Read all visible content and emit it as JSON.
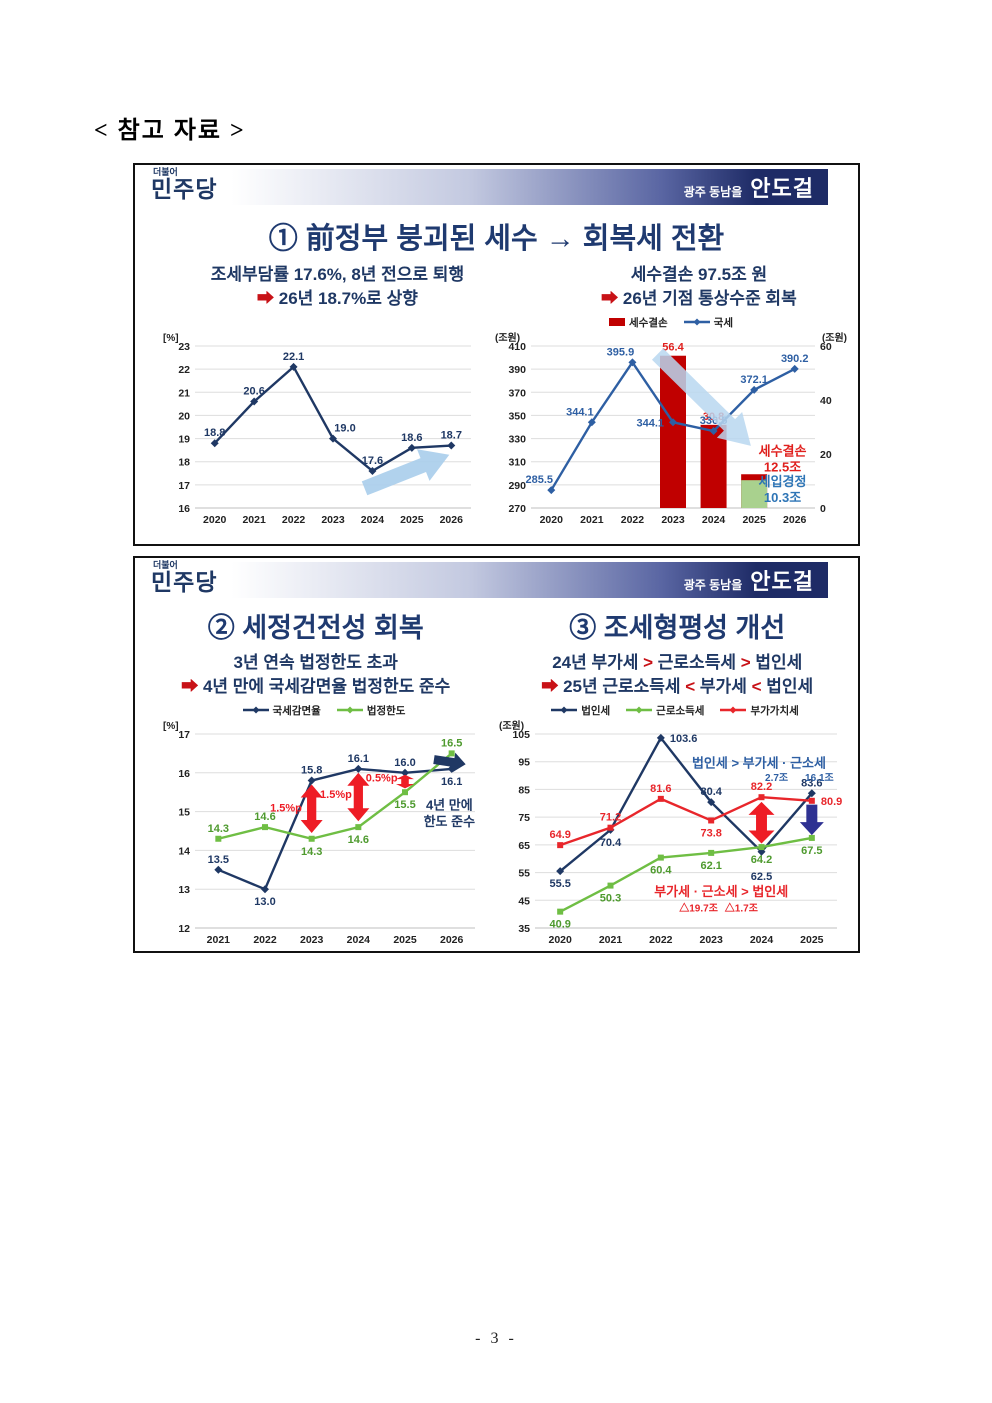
{
  "colors": {
    "navy": "#1F3864",
    "red": "#C81217",
    "banner_navy": "#1E2B66",
    "light_blue": "#AECCE9"
  },
  "page": {
    "heading": "< 참고 자료 >",
    "footer": "- 3 -"
  },
  "banner": {
    "logo_top": "더불어",
    "logo_main": "민주당",
    "badge_region": "광주 동남을",
    "badge_name": "안도걸"
  },
  "panel1": {
    "title": "① 前정부 붕괴된 세수 → 회복세 전환",
    "sub_left": {
      "line1": [
        {
          "t": "조세부담률 17.6%, 8년 전으로 퇴행",
          "c": "navy"
        }
      ],
      "line2": [
        {
          "t": "➡ ",
          "c": "red"
        },
        {
          "t": "26년 18.7%로 상향",
          "c": "navy"
        }
      ]
    },
    "sub_right": {
      "line1": [
        {
          "t": "세수결손 97.5조 원",
          "c": "navy"
        }
      ],
      "line2": [
        {
          "t": "➡ ",
          "c": "red"
        },
        {
          "t": "26년 기점 통상수준 회복",
          "c": "navy"
        }
      ]
    }
  },
  "panel2": {
    "title_left": "② 세정건전성 회복",
    "title_right": "③ 조세형평성 개선",
    "sub_left": {
      "line1": [
        {
          "t": "3년 연속 법정한도 초과",
          "c": "navy"
        }
      ],
      "line2": [
        {
          "t": "➡ ",
          "c": "red"
        },
        {
          "t": "4년 만에 국세감면율 법정한도 준수",
          "c": "navy"
        }
      ]
    },
    "sub_right": {
      "line1": [
        {
          "t": "24년 부가세 ",
          "c": "navy"
        },
        {
          "t": "> ",
          "c": "red"
        },
        {
          "t": "근로소득세 ",
          "c": "navy"
        },
        {
          "t": "> ",
          "c": "red"
        },
        {
          "t": "법인세",
          "c": "navy"
        }
      ],
      "line2": [
        {
          "t": "➡ ",
          "c": "red"
        },
        {
          "t": "25년 근로소득세 ",
          "c": "navy"
        },
        {
          "t": "< ",
          "c": "red"
        },
        {
          "t": "부가세 ",
          "c": "navy"
        },
        {
          "t": "< ",
          "c": "red"
        },
        {
          "t": "법인세",
          "c": "navy"
        }
      ]
    }
  },
  "chart_data": [
    {
      "id": "tax_burden",
      "type": "line",
      "unit": "[%]",
      "ylim": [
        16,
        23
      ],
      "ystep": 1,
      "categories": [
        "2020",
        "2021",
        "2022",
        "2023",
        "2024",
        "2025",
        "2026"
      ],
      "series": [
        {
          "name": "조세부담률",
          "color": "#1F3864",
          "marker": "diamond",
          "values": [
            18.8,
            20.6,
            22.1,
            19.0,
            17.6,
            18.6,
            18.7
          ],
          "labels": [
            "18.8",
            "20.6",
            "22.1",
            "19.0",
            "17.6",
            "18.6",
            "18.7"
          ],
          "label_pos": [
            "a",
            "a",
            "a",
            "ar",
            "a",
            "a",
            "a"
          ]
        }
      ],
      "annotations": [
        {
          "type": "fatarrow",
          "x1": 3.8,
          "y1": 16.85,
          "x2": 5.95,
          "y2": 18.3,
          "color": "#A9CDEB",
          "opacity": 0.9,
          "sw": 15,
          "hw": 34,
          "hl": 28
        }
      ]
    },
    {
      "id": "revenue_deficit",
      "type": "line+bar",
      "unit": "(조원)",
      "unit2": "(조원)",
      "ylim": [
        270,
        410
      ],
      "ystep": 20,
      "ylim2": [
        0,
        60
      ],
      "ystep2": 20,
      "categories": [
        "2020",
        "2021",
        "2022",
        "2023",
        "2024",
        "2025",
        "2026"
      ],
      "legend": [
        {
          "label": "세수결손",
          "swatch": "bar",
          "color": "#C00000"
        },
        {
          "label": "국세",
          "swatch": "line",
          "color": "#2E5FA3"
        }
      ],
      "legend_pos": "top-center",
      "bars": [
        {
          "name": "세수결손",
          "axis": "right",
          "color": "#C00000",
          "values": [
            null,
            null,
            null,
            56.4,
            30.8,
            12.5,
            null
          ],
          "labels": [
            "",
            "",
            "",
            "56.4",
            "30.8",
            "",
            ""
          ],
          "label_color": "#E0201E"
        },
        {
          "name": "세입경정",
          "axis": "right",
          "color": "#A9D18E",
          "values": [
            null,
            null,
            null,
            null,
            null,
            10.3,
            null
          ]
        }
      ],
      "series": [
        {
          "name": "국세",
          "color": "#2E5FA3",
          "marker": "diamond",
          "values": [
            285.5,
            344.1,
            395.9,
            344.1,
            336.5,
            372.1,
            390.2
          ],
          "labels": [
            "285.5",
            "344.1",
            "395.9",
            "344.1",
            "336.5",
            "372.1",
            "390.2"
          ],
          "label_pos": [
            "al",
            "al",
            "al",
            "l",
            "a",
            "a",
            "a"
          ]
        }
      ],
      "annotations": [
        {
          "type": "fatarrow",
          "x1": 2.62,
          "y1": 57,
          "x2": 4.92,
          "y2": 23,
          "axis": "right",
          "color": "#B9D7F0",
          "opacity": 0.85,
          "sw": 16,
          "hw": 36,
          "hl": 30
        },
        {
          "type": "text",
          "x": 5.7,
          "y": 19.5,
          "axis": "right",
          "text": "세수결손\n12.5조",
          "color": "#E0201E",
          "size": 13
        },
        {
          "type": "text",
          "x": 5.7,
          "y": 8.2,
          "axis": "right",
          "text": "세입경정\n10.3조",
          "color": "#2E75B6",
          "size": 13
        }
      ]
    },
    {
      "id": "reduction_ratio",
      "type": "line",
      "unit": "[%]",
      "ylim": [
        12,
        17
      ],
      "ystep": 1,
      "categories": [
        "2021",
        "2022",
        "2023",
        "2024",
        "2025",
        "2026"
      ],
      "legend": [
        {
          "label": "국세감면율",
          "swatch": "line",
          "color": "#1F3864"
        },
        {
          "label": "법정한도",
          "swatch": "line",
          "color": "#6FBE44"
        }
      ],
      "legend_pos": "top-center",
      "series": [
        {
          "name": "국세감면율",
          "color": "#1F3864",
          "marker": "diamond",
          "values": [
            13.5,
            13.0,
            15.8,
            16.1,
            16.0,
            16.1
          ],
          "labels": [
            "13.5",
            "13.0",
            "15.8",
            "16.1",
            "16.0",
            "16.1"
          ],
          "label_pos": [
            "a",
            "b",
            "a",
            "a",
            "a",
            "b"
          ]
        },
        {
          "name": "법정한도",
          "color": "#6FBE44",
          "marker": "square",
          "label_color": "#4E9A2E",
          "values": [
            14.3,
            14.6,
            14.3,
            14.6,
            15.5,
            16.5
          ],
          "labels": [
            "14.3",
            "14.6",
            "14.3",
            "14.6",
            "15.5",
            "16.5"
          ],
          "label_pos": [
            "a",
            "a",
            "b",
            "b",
            "b",
            "a"
          ]
        }
      ],
      "annotations": [
        {
          "type": "dblarrow",
          "x": 2,
          "y1": 14.45,
          "y2": 15.7,
          "w": 11,
          "color": "#EE1C25"
        },
        {
          "type": "dblarrow",
          "x": 3,
          "y1": 14.75,
          "y2": 16.0,
          "w": 11,
          "color": "#EE1C25"
        },
        {
          "type": "dblarrow",
          "x": 4,
          "y1": 15.6,
          "y2": 15.95,
          "w": 9,
          "color": "#EE1C25"
        },
        {
          "type": "text",
          "x": 1.45,
          "y": 15.0,
          "text": "1.5%p",
          "color": "#EE1C25",
          "size": 11
        },
        {
          "type": "text",
          "x": 2.52,
          "y": 15.35,
          "text": "1.5%p",
          "color": "#EE1C25",
          "size": 11
        },
        {
          "type": "text",
          "x": 3.5,
          "y": 15.78,
          "text": "0.5%p",
          "color": "#EE1C25",
          "size": 11
        },
        {
          "type": "fatarrow",
          "x1": 4.62,
          "y1": 16.34,
          "x2": 5.3,
          "y2": 16.22,
          "color": "#203864",
          "sw": 9,
          "hw": 20,
          "hl": 12
        },
        {
          "type": "text",
          "x": 4.95,
          "y": 15.05,
          "text": "4년 만에\n한도 준수",
          "color": "#1F3864",
          "size": 13
        }
      ]
    },
    {
      "id": "tax_equity",
      "type": "line",
      "unit": "(조원)",
      "ylim": [
        35,
        105
      ],
      "ystep": 10,
      "categories": [
        "2020",
        "2021",
        "2022",
        "2023",
        "2024",
        "2025"
      ],
      "legend": [
        {
          "label": "법인세",
          "swatch": "line",
          "color": "#1F3864"
        },
        {
          "label": "근로소득세",
          "swatch": "line",
          "color": "#6FBE44"
        },
        {
          "label": "부가가치세",
          "swatch": "line",
          "color": "#E8262B"
        }
      ],
      "legend_pos": "top-center",
      "series": [
        {
          "name": "법인세",
          "color": "#1F3864",
          "marker": "diamond",
          "values": [
            55.5,
            70.4,
            103.6,
            80.4,
            62.5,
            83.6
          ],
          "labels": [
            "55.5",
            "70.4",
            "103.6",
            "80.4",
            "62.5",
            "83.6"
          ],
          "label_pos": [
            "b",
            "b",
            "r",
            "a",
            "b2",
            "a"
          ]
        },
        {
          "name": "근로소득세",
          "color": "#6FBE44",
          "marker": "square",
          "label_color": "#4E9A2E",
          "values": [
            40.9,
            50.3,
            60.4,
            62.1,
            64.2,
            67.5
          ],
          "labels": [
            "40.9",
            "50.3",
            "60.4",
            "62.1",
            "64.2",
            "67.5"
          ],
          "label_pos": [
            "b",
            "b",
            "b",
            "b",
            "b",
            "b"
          ]
        },
        {
          "name": "부가가치세",
          "color": "#E8262B",
          "marker": "square",
          "values": [
            64.9,
            71.2,
            81.6,
            73.8,
            82.2,
            80.9
          ],
          "labels": [
            "64.9",
            "71.2",
            "81.6",
            "73.8",
            "82.2",
            "80.9"
          ],
          "label_pos": [
            "a",
            "a",
            "a",
            "b",
            "a",
            "r"
          ]
        }
      ],
      "annotations": [
        {
          "type": "text",
          "x": 3.95,
          "y": 93,
          "text": "법인세 > 부가세 · 근소세",
          "color": "#2E5FA3",
          "size": 13
        },
        {
          "type": "text",
          "x": 4.3,
          "y": 88,
          "text": "2.7조",
          "color": "#2E5FA3",
          "size": 10
        },
        {
          "type": "text",
          "x": 5.15,
          "y": 88,
          "text": "16.1조",
          "color": "#2E5FA3",
          "size": 10
        },
        {
          "type": "dblarrow",
          "x": 4,
          "y1": 65.5,
          "y2": 80.5,
          "w": 13,
          "color": "#EE1C25"
        },
        {
          "type": "fatarrow",
          "x1": 5,
          "y1": 79.5,
          "x2": 5,
          "y2": 68.5,
          "color": "#2E3192",
          "sw": 11,
          "hw": 24,
          "hl": 13
        },
        {
          "type": "text",
          "x": 3.2,
          "y": 46.5,
          "text": "부가세 · 근소세 > 법인세",
          "color": "#E8262B",
          "size": 13
        },
        {
          "type": "text",
          "x": 2.75,
          "y": 41,
          "text": "△19.7조",
          "color": "#E8262B",
          "size": 10
        },
        {
          "type": "text",
          "x": 3.6,
          "y": 41,
          "text": "△1.7조",
          "color": "#E8262B",
          "size": 10
        }
      ]
    }
  ]
}
